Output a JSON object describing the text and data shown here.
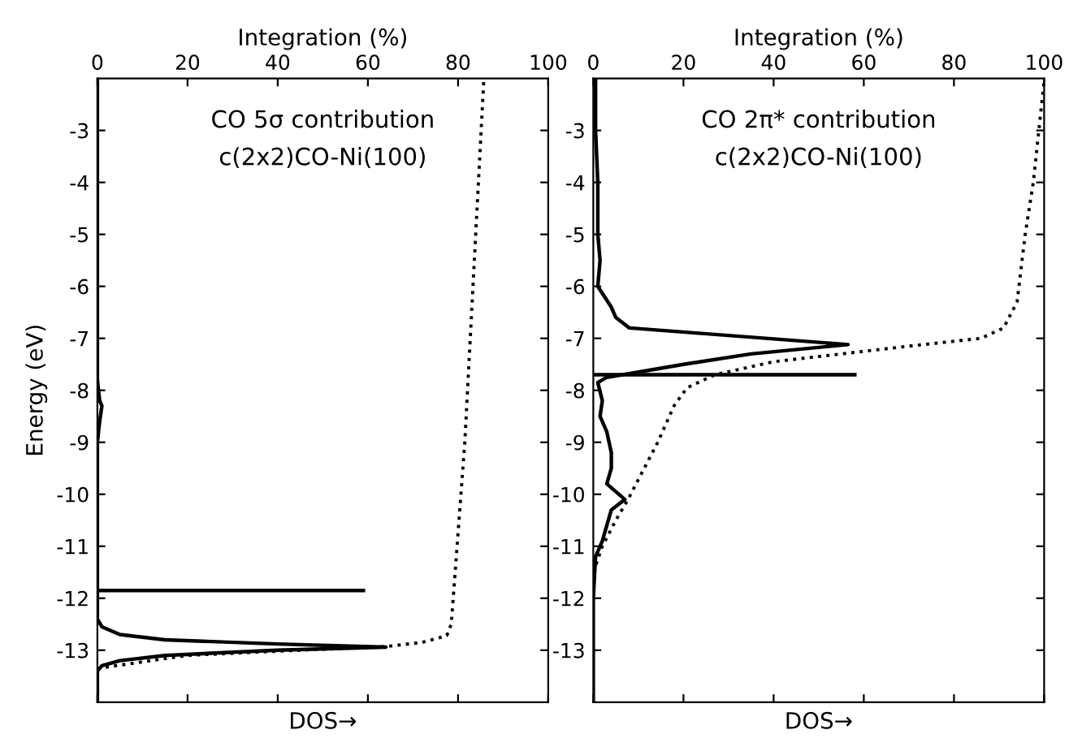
{
  "chart_data": [
    {
      "type": "line",
      "ylabel": "Energy (eV)",
      "xlabel": "Integration (%)",
      "annotations": [
        "CO 5σ contribution",
        "c(2x2)CO-Ni(100)",
        "DOS→"
      ],
      "xlim": [
        0,
        100
      ],
      "xticks": [
        0,
        20,
        40,
        60,
        80,
        100
      ],
      "ylim": [
        -14,
        -2
      ],
      "yticks": [
        {
          "value": -3,
          "label": "-3"
        },
        {
          "value": -4,
          "label": "-4"
        },
        {
          "value": -5,
          "label": "-5"
        },
        {
          "value": -6,
          "label": "-6"
        },
        {
          "value": -7,
          "label": "-7"
        },
        {
          "value": -8,
          "label": "-8"
        },
        {
          "value": -9,
          "label": "-9"
        },
        {
          "value": -10,
          "label": "-10"
        },
        {
          "value": -11,
          "label": "-11"
        },
        {
          "value": -12,
          "label": "-12"
        },
        {
          "value": -13,
          "label": "-13"
        }
      ],
      "grid": false,
      "legend": false,
      "marker": "none",
      "series": [
        {
          "color": "#000000",
          "line_style": "solid",
          "x": [
            0,
            0,
            0.5,
            1,
            0.5,
            0,
            0,
            1,
            5,
            15,
            40,
            64,
            40,
            15,
            5,
            1,
            0,
            0
          ],
          "values": [
            -2,
            -7.8,
            -8.2,
            -8.3,
            -8.6,
            -9,
            -12.4,
            -12.55,
            -12.7,
            -12.8,
            -12.88,
            -12.94,
            -13.0,
            -13.1,
            -13.2,
            -13.3,
            -13.4,
            -14
          ]
        },
        {
          "color": "#000000",
          "line_style": "solid",
          "x": [
            0,
            59
          ],
          "values": [
            -11.85,
            -11.85
          ]
        },
        {
          "color": "#000000",
          "line_style": "dotted",
          "x": [
            0,
            20,
            45,
            64,
            72,
            77.5,
            78.5,
            81.5,
            85.7
          ],
          "values": [
            -13.35,
            -13.1,
            -13.0,
            -12.93,
            -12.85,
            -12.72,
            -12.5,
            -9,
            -2.05
          ]
        }
      ]
    },
    {
      "type": "line",
      "xlabel": "Integration (%)",
      "annotations": [
        "CO 2π* contribution",
        "c(2x2)CO-Ni(100)",
        "DOS→"
      ],
      "xlim": [
        0,
        100
      ],
      "xticks": [
        0,
        20,
        40,
        60,
        80,
        100
      ],
      "ylim": [
        -14,
        -2
      ],
      "yticks": [
        {
          "value": -3,
          "label": "-3"
        },
        {
          "value": -4,
          "label": "-4"
        },
        {
          "value": -5,
          "label": "-5"
        },
        {
          "value": -6,
          "label": "-6"
        },
        {
          "value": -7,
          "label": "-7"
        },
        {
          "value": -8,
          "label": "-8"
        },
        {
          "value": -9,
          "label": "-9"
        },
        {
          "value": -10,
          "label": "-10"
        },
        {
          "value": -11,
          "label": "-11"
        },
        {
          "value": -12,
          "label": "-12"
        },
        {
          "value": -13,
          "label": "-13"
        }
      ],
      "grid": false,
      "legend": false,
      "marker": "none",
      "series": [
        {
          "color": "#000000",
          "line_style": "solid",
          "x": [
            0.5,
            0.5,
            1,
            1,
            1.5,
            1,
            2.5,
            4,
            5,
            8,
            56.5,
            35,
            20,
            10,
            3,
            1,
            2,
            1.5,
            3,
            4,
            4,
            3,
            7,
            4,
            3,
            2,
            0.5,
            0,
            0
          ],
          "values": [
            -2,
            -3,
            -4,
            -5,
            -5.5,
            -6,
            -6.2,
            -6.4,
            -6.6,
            -6.8,
            -7.12,
            -7.3,
            -7.5,
            -7.65,
            -7.75,
            -7.85,
            -8.2,
            -8.5,
            -8.8,
            -9.2,
            -9.5,
            -9.8,
            -10.1,
            -10.3,
            -10.6,
            -10.9,
            -11.2,
            -12,
            -14
          ]
        },
        {
          "color": "#000000",
          "line_style": "solid",
          "x": [
            0,
            58
          ],
          "values": [
            -7.7,
            -7.7
          ]
        },
        {
          "color": "#000000",
          "line_style": "dotted",
          "x": [
            0,
            2,
            5,
            7.7,
            14.3,
            17.9,
            20.8,
            27,
            40,
            55,
            70,
            86,
            91,
            94,
            95.8,
            97.6,
            100
          ],
          "values": [
            -11.5,
            -11,
            -10.5,
            -10.1,
            -9,
            -8.3,
            -7.95,
            -7.7,
            -7.45,
            -7.3,
            -7.15,
            -7.0,
            -6.8,
            -6.3,
            -5,
            -4,
            -2.05
          ]
        }
      ]
    }
  ]
}
